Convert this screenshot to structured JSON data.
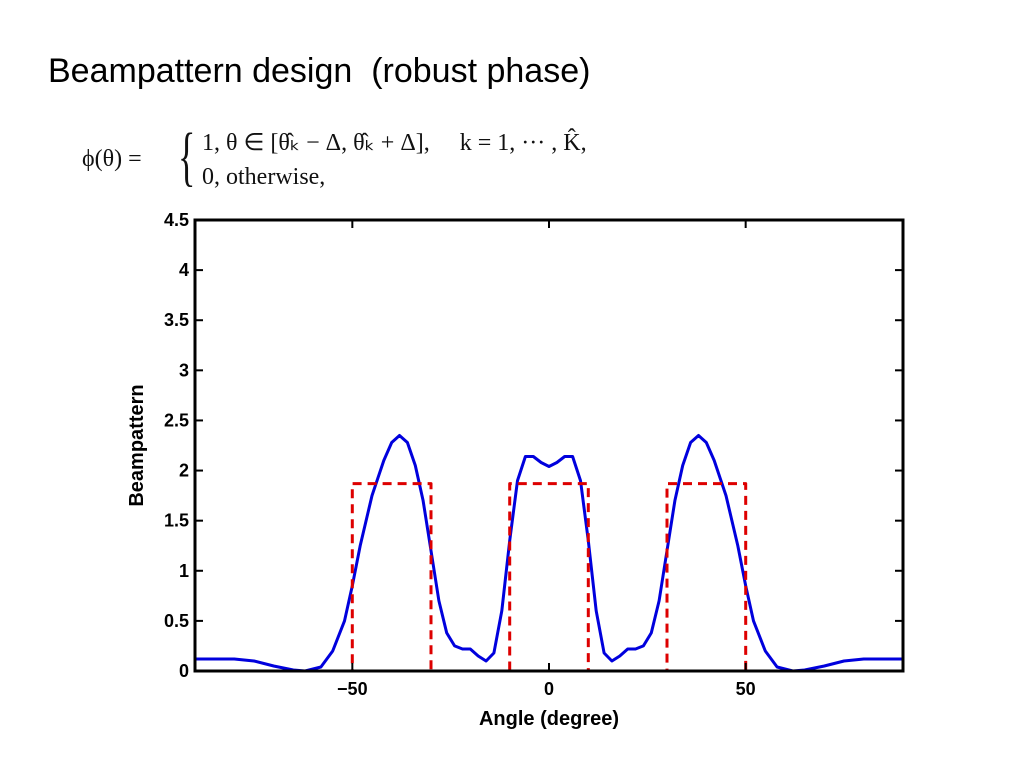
{
  "slide": {
    "title": "Beampattern design  (robust phase)"
  },
  "equation": {
    "lhs": "ϕ(θ) =",
    "case1": "1, θ ∈ [θ̂ₖ − Δ, θ̂ₖ + Δ],     k = 1, ··· , K̂,",
    "case2": "0, otherwise,"
  },
  "chart_data": {
    "type": "line",
    "xlabel": "Angle (degree)",
    "ylabel": "Beampattern",
    "xlim": [
      -90,
      90
    ],
    "ylim": [
      0,
      4.5
    ],
    "xticks": [
      -50,
      0,
      50
    ],
    "xtick_labels": [
      "−50",
      "0",
      "50"
    ],
    "yticks": [
      0,
      0.5,
      1,
      1.5,
      2,
      2.5,
      3,
      3.5,
      4,
      4.5
    ],
    "ytick_labels": [
      "0",
      "0.5",
      "1",
      "1.5",
      "2",
      "2.5",
      "3",
      "3.5",
      "4",
      "4.5"
    ],
    "grid": false,
    "series": [
      {
        "style": "solid",
        "color": "#0000dd",
        "x": [
          -90,
          -80,
          -75,
          -70,
          -65,
          -62,
          -58,
          -55,
          -52,
          -50,
          -48,
          -45,
          -42,
          -40,
          -38,
          -36,
          -34,
          -32,
          -30,
          -28,
          -26,
          -24,
          -22,
          -20,
          -18,
          -16,
          -14,
          -12,
          -10,
          -8,
          -6,
          -4,
          -2,
          0,
          2,
          4,
          6,
          8,
          10,
          12,
          14,
          16,
          18,
          20,
          22,
          24,
          26,
          28,
          30,
          32,
          34,
          36,
          38,
          40,
          42,
          45,
          48,
          50,
          52,
          55,
          58,
          62,
          65,
          70,
          75,
          80,
          90
        ],
        "y": [
          0.12,
          0.12,
          0.1,
          0.05,
          0.01,
          0.0,
          0.04,
          0.2,
          0.5,
          0.85,
          1.25,
          1.75,
          2.1,
          2.28,
          2.35,
          2.28,
          2.05,
          1.7,
          1.2,
          0.7,
          0.38,
          0.25,
          0.22,
          0.22,
          0.15,
          0.1,
          0.18,
          0.6,
          1.3,
          1.9,
          2.14,
          2.14,
          2.08,
          2.04,
          2.08,
          2.14,
          2.14,
          1.9,
          1.3,
          0.6,
          0.18,
          0.1,
          0.15,
          0.22,
          0.22,
          0.25,
          0.38,
          0.7,
          1.2,
          1.7,
          2.05,
          2.28,
          2.35,
          2.28,
          2.1,
          1.75,
          1.25,
          0.85,
          0.5,
          0.2,
          0.04,
          0.0,
          0.01,
          0.05,
          0.1,
          0.12,
          0.12
        ]
      },
      {
        "style": "dashed",
        "color": "#dd0000",
        "x": [
          -90,
          -50,
          -50,
          -30,
          -30,
          -10,
          -10,
          10,
          10,
          30,
          30,
          50,
          50,
          90
        ],
        "y": [
          0,
          0,
          1.87,
          1.87,
          0,
          0,
          1.87,
          1.87,
          0,
          0,
          1.87,
          1.87,
          0,
          0
        ]
      }
    ]
  }
}
